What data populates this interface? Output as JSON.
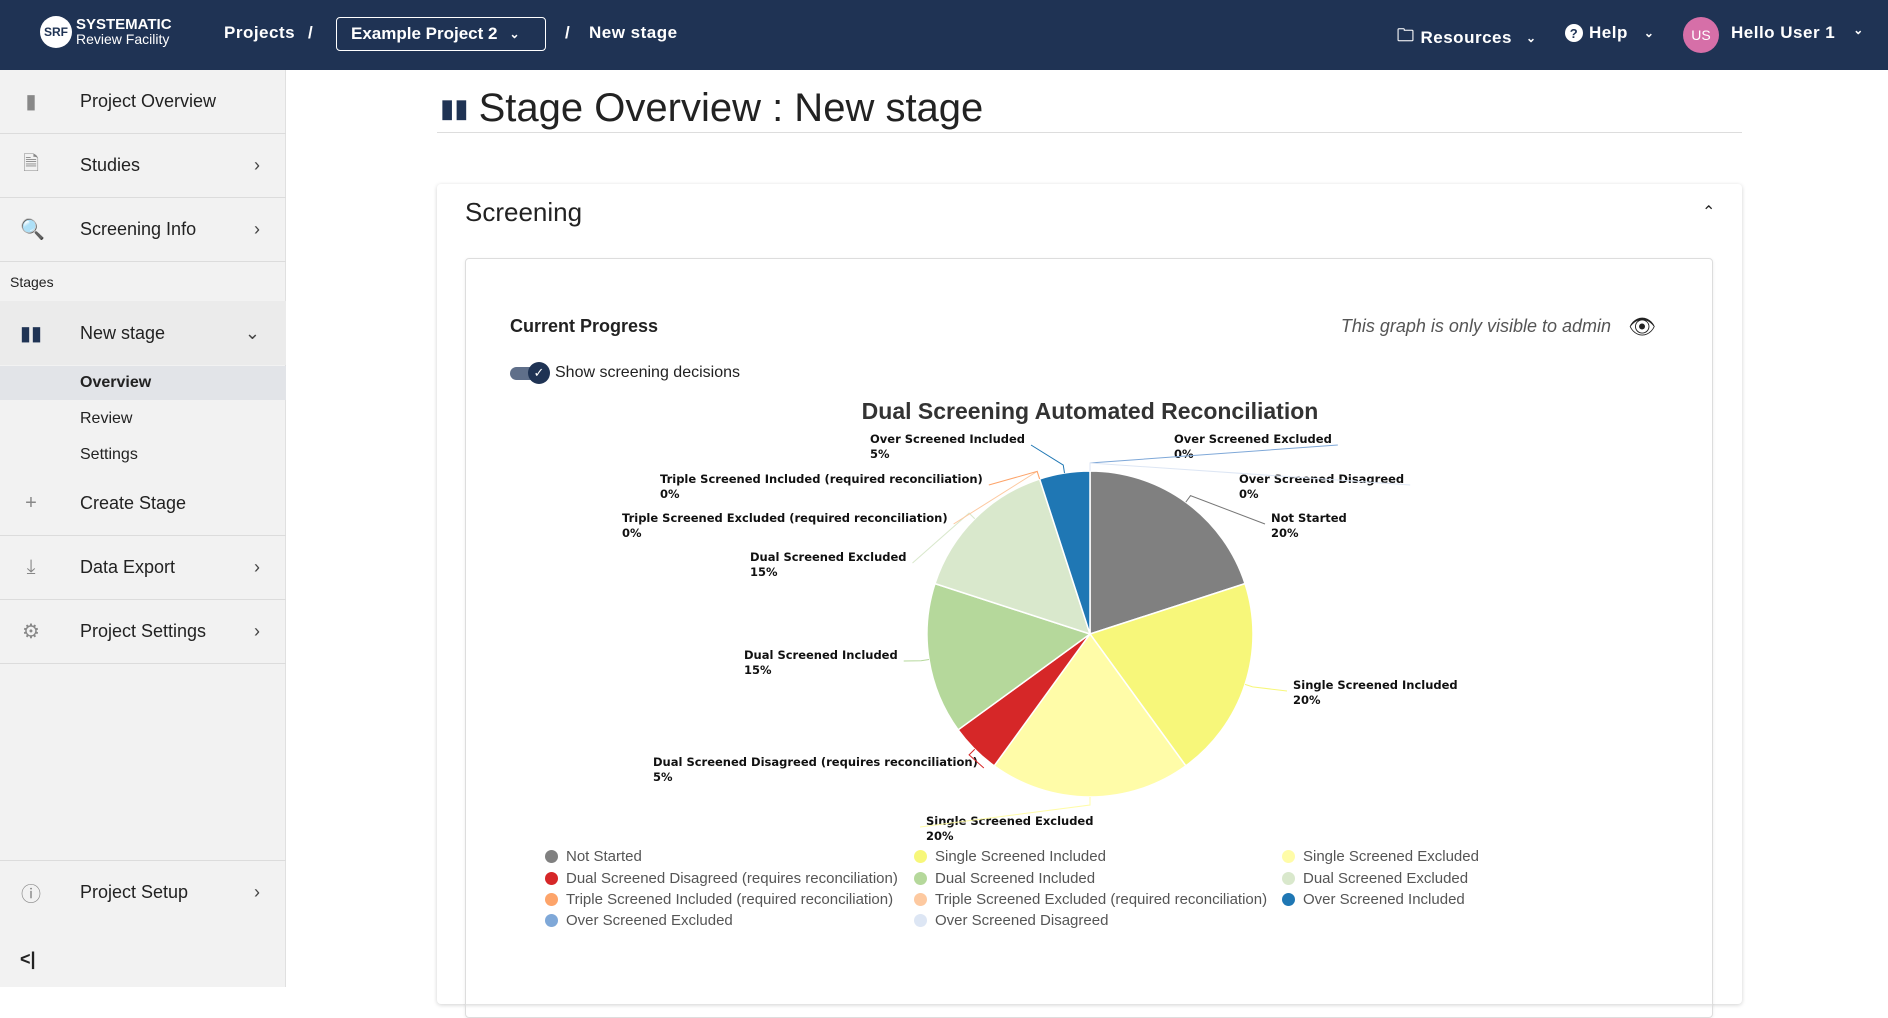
{
  "header": {
    "logo_line1": "SYSTEMATIC",
    "logo_line2": "Review Facility",
    "logo_mark": "SRF",
    "projects": "Projects",
    "sep": "/",
    "project_select": "Example Project 2",
    "current": "New stage",
    "resources": "Resources",
    "help": "Help",
    "avatar_initials": "US",
    "user": "Hello User 1"
  },
  "sidebar": {
    "items": [
      {
        "label": "Project Overview",
        "icon": "bookmark-icon"
      },
      {
        "label": "Studies",
        "icon": "document-icon"
      },
      {
        "label": "Screening Info",
        "icon": "document-search-icon"
      }
    ],
    "stages_label": "Stages",
    "stage": {
      "label": "New stage",
      "icon": "stage-icon",
      "sub": [
        "Overview",
        "Review",
        "Settings"
      ],
      "active_sub": "Overview"
    },
    "create_stage": "Create Stage",
    "data_export": "Data Export",
    "project_settings": "Project Settings",
    "project_setup": "Project Setup",
    "collapse": "<|"
  },
  "main": {
    "title": "Stage Overview : New stage",
    "section": "Screening",
    "current_progress": "Current Progress",
    "admin_note": "This graph is only visible to admin",
    "toggle_label": "Show screening decisions",
    "toggle_on": true
  },
  "chart_data": {
    "type": "pie",
    "title": "Dual Screening Automated Reconciliation",
    "legend_position": "bottom",
    "slices": [
      {
        "name": "Not Started",
        "value": 20,
        "label": "20%",
        "color": "#808080"
      },
      {
        "name": "Single Screened Included",
        "value": 20,
        "label": "20%",
        "color": "#f7f77a"
      },
      {
        "name": "Single Screened Excluded",
        "value": 20,
        "label": "20%",
        "color": "#fffca8"
      },
      {
        "name": "Dual Screened Disagreed (requires reconciliation)",
        "value": 5,
        "label": "5%",
        "color": "#d62728"
      },
      {
        "name": "Dual Screened Included",
        "value": 15,
        "label": "15%",
        "color": "#b5d89b"
      },
      {
        "name": "Dual Screened Excluded",
        "value": 15,
        "label": "15%",
        "color": "#d9e8cc"
      },
      {
        "name": "Triple Screened Excluded (required reconciliation)",
        "value": 0,
        "label": "0%",
        "color": "#fdc9a0"
      },
      {
        "name": "Triple Screened Included (required reconciliation)",
        "value": 0,
        "label": "0%",
        "color": "#fda46a"
      },
      {
        "name": "Over Screened Included",
        "value": 5,
        "label": "5%",
        "color": "#1f77b4"
      },
      {
        "name": "Over Screened Excluded",
        "value": 0,
        "label": "0%",
        "color": "#7fa8d8"
      },
      {
        "name": "Over Screened Disagreed",
        "value": 0,
        "label": "0%",
        "color": "#dde6f4"
      }
    ],
    "legend_order": [
      "Not Started",
      "Single Screened Included",
      "Single Screened Excluded",
      "Dual Screened Disagreed (requires reconciliation)",
      "Dual Screened Included",
      "Dual Screened Excluded",
      "Triple Screened Included (required reconciliation)",
      "Triple Screened Excluded (required reconciliation)",
      "Over Screened Included",
      "Over Screened Excluded",
      "Over Screened Disagreed"
    ]
  }
}
